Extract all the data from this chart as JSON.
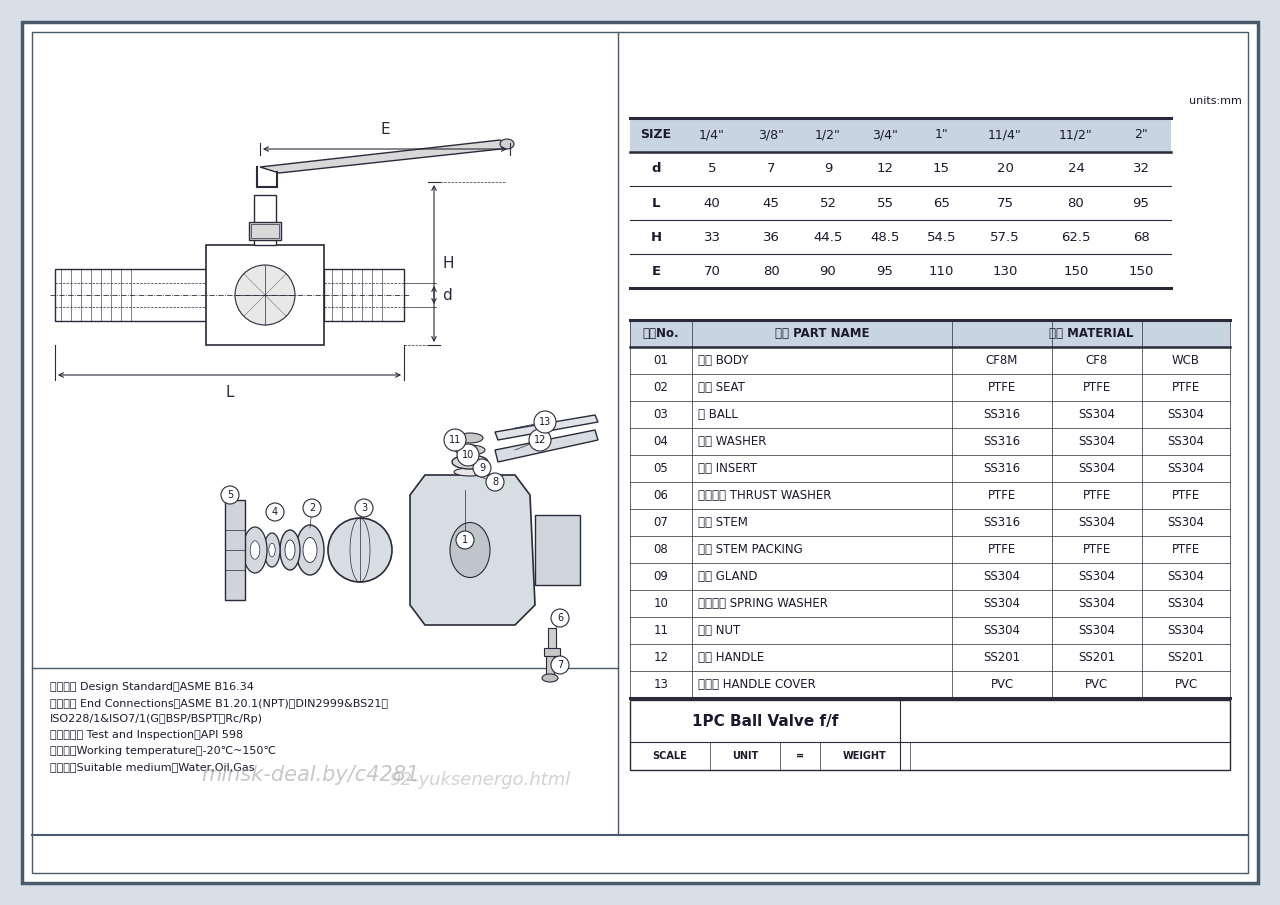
{
  "bg_color": "#d8dfe8",
  "paper_color": "#ffffff",
  "text_color": "#1a1a2e",
  "line_color": "#2a2a3a",
  "dim_color": "#2a2a3a",
  "header_fill": "#c5d0dc",
  "title_text": "1PC Ball Valve f/f",
  "units_text": "units:mm",
  "size_table": {
    "headers": [
      "SIZE",
      "1/4\"",
      "3/8\"",
      "1/2\"",
      "3/4\"",
      "1\"",
      "11/4\"",
      "11/2\"",
      "2\""
    ],
    "rows": [
      [
        "d",
        "5",
        "7",
        "9",
        "12",
        "15",
        "20",
        "24",
        "32"
      ],
      [
        "L",
        "40",
        "45",
        "52",
        "55",
        "65",
        "75",
        "80",
        "95"
      ],
      [
        "H",
        "33",
        "36",
        "44.5",
        "48.5",
        "54.5",
        "57.5",
        "62.5",
        "68"
      ],
      [
        "E",
        "70",
        "80",
        "90",
        "95",
        "110",
        "130",
        "150",
        "150"
      ]
    ]
  },
  "parts_table": {
    "rows": [
      [
        "01",
        "阀体 BODY",
        "CF8M",
        "CF8",
        "WCB"
      ],
      [
        "02",
        "阀座 SEAT",
        "PTFE",
        "PTFE",
        "PTFE"
      ],
      [
        "03",
        "球 BALL",
        "SS316",
        "SS304",
        "SS304"
      ],
      [
        "04",
        "帮片 WASHER",
        "SS316",
        "SS304",
        "SS304"
      ],
      [
        "05",
        "井帽 INSERT",
        "SS316",
        "SS304",
        "SS304"
      ],
      [
        "06",
        "止推帮片 THRUST WASHER",
        "PTFE",
        "PTFE",
        "PTFE"
      ],
      [
        "07",
        "阀杆 STEM",
        "SS316",
        "SS304",
        "SS304"
      ],
      [
        "08",
        "填料 STEM PACKING",
        "PTFE",
        "PTFE",
        "PTFE"
      ],
      [
        "09",
        "压盖 GLAND",
        "SS304",
        "SS304",
        "SS304"
      ],
      [
        "10",
        "弹簧帮片 SPRING WASHER",
        "SS304",
        "SS304",
        "SS304"
      ],
      [
        "11",
        "负母 NUT",
        "SS304",
        "SS304",
        "SS304"
      ],
      [
        "12",
        "手柄 HANDLE",
        "SS201",
        "SS201",
        "SS201"
      ],
      [
        "13",
        "手柄套 HANDLE COVER",
        "PVC",
        "PVC",
        "PVC"
      ]
    ]
  },
  "notes": [
    "设计标准 Design Standard：ASME B16.34",
    "连接标准 End Connections：ASME B1.20.1(NPT)、DIN2999&BS21、",
    "ISO228/1&ISO7/1(G，BSP/BSPT，Rc/Rp)",
    "试验与检验 Test and Inspection：API 598",
    "使用温度Working temperature：-20℃~150℃",
    "适用介质Suitable medium：Water,Oil,Gas"
  ]
}
